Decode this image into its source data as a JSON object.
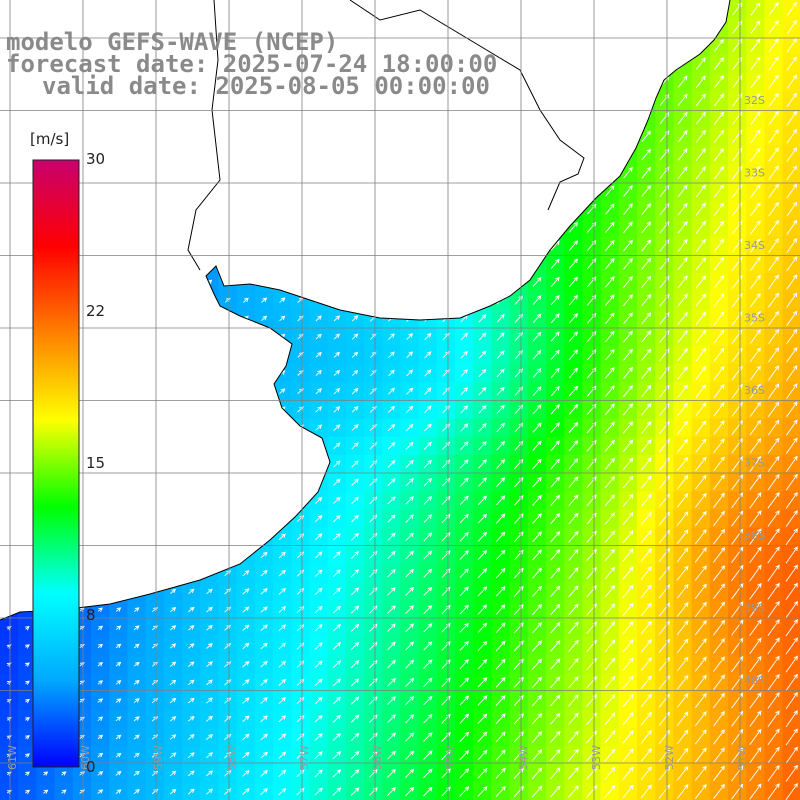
{
  "title": {
    "model": "modelo GEFS-WAVE (NCEP)",
    "forecast": "forecast date: 2025-07-24 18:00:00",
    "valid": "valid date: 2025-08-05 00:00:00"
  },
  "colorbar": {
    "unit": "[m/s]",
    "ticks": [
      "30",
      "22",
      "15",
      "8",
      "0"
    ],
    "min": 0,
    "max": 30,
    "colors": [
      "#0000ff",
      "#00a8ff",
      "#00ffff",
      "#00ff00",
      "#ffff00",
      "#ff8000",
      "#ff0000",
      "#c8006e"
    ]
  },
  "map": {
    "variable": "wind speed and direction",
    "lat_labels": [
      "32S",
      "33S",
      "34S",
      "35S",
      "36S",
      "37S",
      "38S",
      "39S",
      "40S"
    ],
    "lon_labels": [
      "61W",
      "60W",
      "59W",
      "58W",
      "57W",
      "56W",
      "55W",
      "54W",
      "53W",
      "52W",
      "51W",
      "50W"
    ],
    "land_color": "#ffffff",
    "coast_color": "#000000",
    "grid_color": "#7f7f7f",
    "arrow_color": "#ffffff"
  }
}
